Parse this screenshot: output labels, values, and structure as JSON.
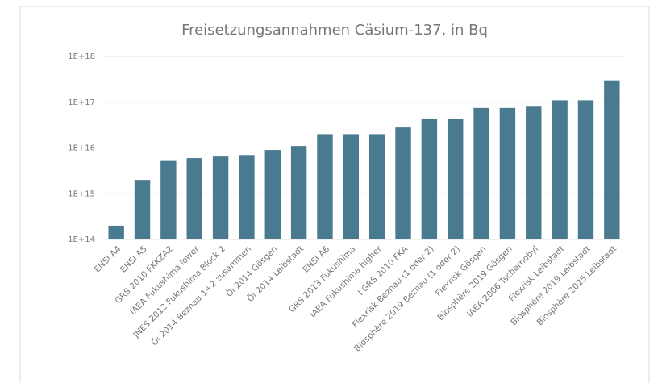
{
  "chart_data": {
    "type": "bar",
    "title": "Freisetzungsannahmen Cäsium-137, in Bq",
    "categories": [
      "ENSI A4",
      "ENSI A5",
      "GRS 2010 FKKZA2",
      "IAEA Fukushima lower",
      "JNES 2012 Fukushima Block 2",
      "Öi 2014 Beznau 1+2 zusammen",
      "Öi 2014 Gösgen",
      "Öi 2014 Leibstadt",
      "ENSI A6",
      "GRS 2013 Fukushima",
      "IAEA Fukushima higher",
      "I GRS 2010 FKA",
      "Flexrisk Beznau (1 oder 2)",
      "Biosphère 2019 Beznau (1 oder 2)",
      "Flexrisk Gösgen",
      "Biosphère 2019 Gösgen",
      "IAEA 2006 Tschernobyl",
      "Flexrisk Leibstadt",
      "Biosphère 2019 Leibstadt",
      "Biosphère 2025 Leibstadt"
    ],
    "values": [
      200000000000000.0,
      2000000000000000.0,
      5200000000000000.0,
      6000000000000000.0,
      6500000000000000.0,
      7000000000000000.0,
      9000000000000000.0,
      1.1e+16,
      2e+16,
      2e+16,
      2e+16,
      2.8e+16,
      4.3e+16,
      4.3e+16,
      7.5e+16,
      7.5e+16,
      8e+16,
      1.1e+17,
      1.1e+17,
      3e+17
    ],
    "color": "#4a7a90",
    "log_scale": true,
    "ylim": [
      100000000000000.0,
      1e+18
    ],
    "yticks": [
      {
        "value": 100000000000000.0,
        "label": "1E+14"
      },
      {
        "value": 1000000000000000.0,
        "label": "1E+15"
      },
      {
        "value": 1e+16,
        "label": "1E+16"
      },
      {
        "value": 1e+17,
        "label": "1E+17"
      },
      {
        "value": 1e+18,
        "label": "1E+18"
      }
    ],
    "grid": true
  }
}
